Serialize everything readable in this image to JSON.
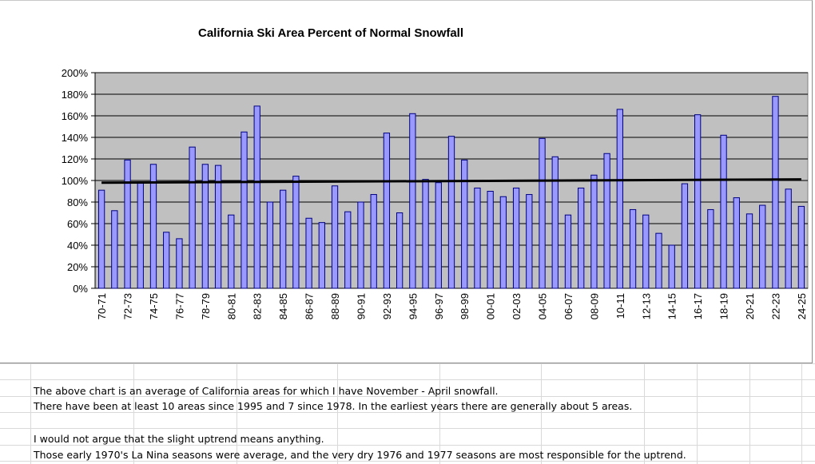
{
  "chart_data": {
    "type": "bar",
    "title": "California Ski Area Percent of Normal Snowfall",
    "xlabel": "",
    "ylabel": "",
    "ylim": [
      0,
      200
    ],
    "y_tick_labels": [
      "0%",
      "20%",
      "40%",
      "60%",
      "80%",
      "100%",
      "120%",
      "140%",
      "160%",
      "180%",
      "200%"
    ],
    "grid": true,
    "legend": "none",
    "categories": [
      "70-71",
      "71-72",
      "72-73",
      "73-74",
      "74-75",
      "75-76",
      "76-77",
      "77-78",
      "78-79",
      "79-80",
      "80-81",
      "81-82",
      "82-83",
      "83-84",
      "84-85",
      "85-86",
      "86-87",
      "87-88",
      "88-89",
      "89-90",
      "90-91",
      "91-92",
      "92-93",
      "93-94",
      "94-95",
      "95-96",
      "96-97",
      "97-98",
      "98-99",
      "99-00",
      "00-01",
      "01-02",
      "02-03",
      "03-04",
      "04-05",
      "05-06",
      "06-07",
      "07-08",
      "08-09",
      "09-10",
      "10-11",
      "11-12",
      "12-13",
      "13-14",
      "14-15",
      "15-16",
      "16-17",
      "17-18",
      "18-19",
      "19-20",
      "20-21",
      "21-22",
      "22-23",
      "23-24",
      "24-25"
    ],
    "x_tick_labels": [
      "70-71",
      "72-73",
      "74-75",
      "76-77",
      "78-79",
      "80-81",
      "82-83",
      "84-85",
      "86-87",
      "88-89",
      "90-91",
      "92-93",
      "94-95",
      "96-97",
      "98-99",
      "00-01",
      "02-03",
      "04-05",
      "06-07",
      "08-09",
      "10-11",
      "12-13",
      "14-15",
      "16-17",
      "18-19",
      "20-21",
      "22-23",
      "24-25"
    ],
    "values": [
      91,
      72,
      119,
      98,
      115,
      52,
      46,
      131,
      115,
      114,
      68,
      145,
      169,
      80,
      91,
      104,
      65,
      61,
      95,
      71,
      80,
      87,
      144,
      70,
      162,
      101,
      98,
      141,
      119,
      93,
      90,
      85,
      93,
      87,
      139,
      122,
      68,
      93,
      105,
      125,
      166,
      73,
      68,
      51,
      40,
      97,
      161,
      73,
      142,
      84,
      69,
      77,
      178,
      92,
      76
    ],
    "trendline": {
      "start": 98,
      "end": 101
    },
    "colors": {
      "bar_fill": "#9999ff",
      "bar_stroke": "#000080",
      "plot_bg": "#c0c0c0",
      "trend": "#000000"
    }
  },
  "notes": [
    "The above chart is an average of California areas for which I have November - April snowfall.",
    "There have been at least 10 areas since 1995 and 7 since 1978.   In the earliest years there are generally about 5 areas.",
    "I would not argue that the slight uptrend means anything.",
    "Those early 1970's La Nina seasons were average, and the very dry 1976 and 1977 seasons are most responsible for the uptrend."
  ]
}
